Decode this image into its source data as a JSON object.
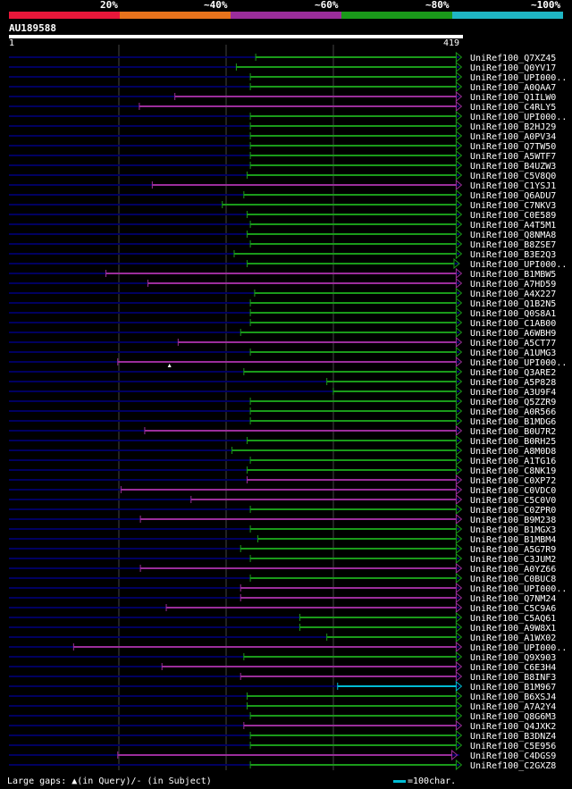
{
  "legend": {
    "labels": [
      "20%",
      "~40%",
      "~60%",
      "~80%",
      "~100%"
    ],
    "colors": [
      "#e8173a",
      "#e8731c",
      "#9b2d9b",
      "#1a9a1a",
      "#1fb6c4"
    ]
  },
  "query": {
    "id": "AU189588",
    "start_label": "1",
    "end_label": "419",
    "length": 419
  },
  "colors": {
    "background": "#000000",
    "unaligned": "#000060",
    "green": "#1a9a1a",
    "purple": "#9b2d9b",
    "cyan": "#00bcd4",
    "grid": "#444444"
  },
  "footer": {
    "gaps_text": "Large gaps: ▲(in Query)/- (in Subject)",
    "scale_text": "=100char."
  },
  "chart_data": {
    "type": "alignment-overview",
    "query_length": 419,
    "hits": [
      {
        "name": "UniRef100_Q7XZ45",
        "start": 230,
        "end": 416,
        "color": "green",
        "arrow": true
      },
      {
        "name": "UniRef100_Q0YV17",
        "start": 212,
        "end": 416,
        "color": "green",
        "arrow": true
      },
      {
        "name": "UniRef100_UPI000..",
        "start": 225,
        "end": 416,
        "color": "green",
        "arrow": true
      },
      {
        "name": "UniRef100_A0QAA7",
        "start": 225,
        "end": 416,
        "color": "green",
        "arrow": true
      },
      {
        "name": "UniRef100_Q1ILW0",
        "start": 155,
        "end": 416,
        "color": "purple",
        "arrow": true
      },
      {
        "name": "UniRef100_C4RLY5",
        "start": 122,
        "end": 416,
        "color": "purple",
        "arrow": true
      },
      {
        "name": "UniRef100_UPI000..",
        "start": 225,
        "end": 416,
        "color": "green",
        "arrow": true
      },
      {
        "name": "UniRef100_B2HJ29",
        "start": 225,
        "end": 416,
        "color": "green",
        "arrow": true
      },
      {
        "name": "UniRef100_A0PV34",
        "start": 225,
        "end": 416,
        "color": "green",
        "arrow": true
      },
      {
        "name": "UniRef100_Q7TW50",
        "start": 225,
        "end": 416,
        "color": "green",
        "arrow": true
      },
      {
        "name": "UniRef100_A5WTF7",
        "start": 225,
        "end": 416,
        "color": "green",
        "arrow": true
      },
      {
        "name": "UniRef100_B4UZW3",
        "start": 225,
        "end": 416,
        "color": "green",
        "arrow": true
      },
      {
        "name": "UniRef100_C5V8Q0",
        "start": 222,
        "end": 416,
        "color": "green",
        "arrow": true
      },
      {
        "name": "UniRef100_C1YSJ1",
        "start": 134,
        "end": 416,
        "color": "purple",
        "arrow": true
      },
      {
        "name": "UniRef100_Q6ADU7",
        "start": 219,
        "end": 416,
        "color": "green",
        "arrow": true
      },
      {
        "name": "UniRef100_C7NKV3",
        "start": 199,
        "end": 416,
        "color": "green",
        "arrow": true
      },
      {
        "name": "UniRef100_C0E589",
        "start": 222,
        "end": 416,
        "color": "green",
        "arrow": true
      },
      {
        "name": "UniRef100_A4T5M1",
        "start": 225,
        "end": 416,
        "color": "green",
        "arrow": true
      },
      {
        "name": "UniRef100_Q8NMA8",
        "start": 222,
        "end": 416,
        "color": "green",
        "arrow": true
      },
      {
        "name": "UniRef100_B8ZSE7",
        "start": 225,
        "end": 416,
        "color": "green",
        "arrow": true
      },
      {
        "name": "UniRef100_B3E2Q3",
        "start": 210,
        "end": 416,
        "color": "green",
        "arrow": true
      },
      {
        "name": "UniRef100_UPI000..",
        "start": 222,
        "end": 414,
        "color": "green",
        "arrow": true
      },
      {
        "name": "UniRef100_B1MBW5",
        "start": 91,
        "end": 416,
        "color": "purple",
        "arrow": true
      },
      {
        "name": "UniRef100_A7HD59",
        "start": 130,
        "end": 416,
        "color": "purple",
        "arrow": true
      },
      {
        "name": "UniRef100_A4X227",
        "start": 229,
        "end": 416,
        "color": "green",
        "arrow": true
      },
      {
        "name": "UniRef100_Q1B2N5",
        "start": 225,
        "end": 416,
        "color": "green",
        "arrow": true
      },
      {
        "name": "UniRef100_Q0S8A1",
        "start": 225,
        "end": 416,
        "color": "green",
        "arrow": true
      },
      {
        "name": "UniRef100_C1AB00",
        "start": 225,
        "end": 416,
        "color": "green",
        "arrow": true
      },
      {
        "name": "UniRef100_A6WBH9",
        "start": 216,
        "end": 416,
        "color": "green",
        "arrow": true
      },
      {
        "name": "UniRef100_A5CT77",
        "start": 158,
        "end": 416,
        "color": "purple",
        "arrow": true
      },
      {
        "name": "UniRef100_A1UMG3",
        "start": 225,
        "end": 416,
        "color": "green",
        "arrow": true
      },
      {
        "name": "UniRef100_UPI000..",
        "start": 102,
        "end": 416,
        "color": "purple",
        "arrow": true,
        "qgap": 150
      },
      {
        "name": "UniRef100_Q3ARE2",
        "start": 219,
        "end": 416,
        "color": "green",
        "arrow": true
      },
      {
        "name": "UniRef100_A5P828",
        "start": 296,
        "end": 416,
        "color": "green",
        "arrow": true
      },
      {
        "name": "UniRef100_A3U9F4",
        "start": 302,
        "end": 416,
        "color": "green",
        "arrow": true
      },
      {
        "name": "UniRef100_Q5ZZR9",
        "start": 225,
        "end": 416,
        "color": "green",
        "arrow": true
      },
      {
        "name": "UniRef100_A0R566",
        "start": 225,
        "end": 416,
        "color": "green",
        "arrow": true
      },
      {
        "name": "UniRef100_B1MDG6",
        "start": 225,
        "end": 416,
        "color": "green",
        "arrow": true
      },
      {
        "name": "UniRef100_B0U7R2",
        "start": 127,
        "end": 416,
        "color": "purple",
        "arrow": true
      },
      {
        "name": "UniRef100_B0RH25",
        "start": 222,
        "end": 416,
        "color": "green",
        "arrow": true
      },
      {
        "name": "UniRef100_A8M0D8",
        "start": 208,
        "end": 416,
        "color": "green",
        "arrow": true
      },
      {
        "name": "UniRef100_A1TG16",
        "start": 225,
        "end": 416,
        "color": "green",
        "arrow": true
      },
      {
        "name": "UniRef100_C8NK19",
        "start": 222,
        "end": 416,
        "color": "green",
        "arrow": true
      },
      {
        "name": "UniRef100_C0XP72",
        "start": 222,
        "end": 416,
        "color": "purple",
        "arrow": true
      },
      {
        "name": "UniRef100_C0VDC0",
        "start": 105,
        "end": 416,
        "color": "purple",
        "arrow": true
      },
      {
        "name": "UniRef100_C5C0V0",
        "start": 170,
        "end": 416,
        "color": "purple",
        "arrow": true
      },
      {
        "name": "UniRef100_C0ZPR0",
        "start": 225,
        "end": 416,
        "color": "green",
        "arrow": true
      },
      {
        "name": "UniRef100_B9M238",
        "start": 123,
        "end": 416,
        "color": "purple",
        "arrow": true
      },
      {
        "name": "UniRef100_B1MGX3",
        "start": 225,
        "end": 416,
        "color": "green",
        "arrow": true
      },
      {
        "name": "UniRef100_B1MBM4",
        "start": 232,
        "end": 416,
        "color": "green",
        "arrow": true
      },
      {
        "name": "UniRef100_A5G7R9",
        "start": 216,
        "end": 416,
        "color": "green",
        "arrow": true
      },
      {
        "name": "UniRef100_C3JUM2",
        "start": 225,
        "end": 416,
        "color": "green",
        "arrow": true
      },
      {
        "name": "UniRef100_A0YZ66",
        "start": 123,
        "end": 416,
        "color": "purple",
        "arrow": true
      },
      {
        "name": "UniRef100_C0BUC8",
        "start": 225,
        "end": 416,
        "color": "green",
        "arrow": true
      },
      {
        "name": "UniRef100_UPI000..",
        "start": 216,
        "end": 416,
        "color": "purple",
        "arrow": true
      },
      {
        "name": "UniRef100_Q7NM24",
        "start": 216,
        "end": 416,
        "color": "purple",
        "arrow": true
      },
      {
        "name": "UniRef100_C5C9A6",
        "start": 147,
        "end": 416,
        "color": "purple",
        "arrow": true
      },
      {
        "name": "UniRef100_C5AQ61",
        "start": 271,
        "end": 416,
        "color": "green",
        "arrow": true
      },
      {
        "name": "UniRef100_A9W8X1",
        "start": 271,
        "end": 416,
        "color": "green",
        "arrow": true
      },
      {
        "name": "UniRef100_A1WX02",
        "start": 296,
        "end": 416,
        "color": "green",
        "arrow": true
      },
      {
        "name": "UniRef100_UPI000..",
        "start": 61,
        "end": 416,
        "color": "purple",
        "arrow": true
      },
      {
        "name": "UniRef100_Q9X903",
        "start": 219,
        "end": 416,
        "color": "green",
        "arrow": true
      },
      {
        "name": "UniRef100_C6E3H4",
        "start": 143,
        "end": 416,
        "color": "purple",
        "arrow": true
      },
      {
        "name": "UniRef100_B8INF3",
        "start": 216,
        "end": 416,
        "color": "purple",
        "arrow": true
      },
      {
        "name": "UniRef100_B1M967",
        "start": 306,
        "end": 416,
        "color": "cyan",
        "arrow": true
      },
      {
        "name": "UniRef100_B6XSJ4",
        "start": 222,
        "end": 416,
        "color": "green",
        "arrow": true
      },
      {
        "name": "UniRef100_A7A2Y4",
        "start": 222,
        "end": 416,
        "color": "green",
        "arrow": true
      },
      {
        "name": "UniRef100_Q8G6M3",
        "start": 225,
        "end": 416,
        "color": "green",
        "arrow": true
      },
      {
        "name": "UniRef100_Q4JXK2",
        "start": 219,
        "end": 416,
        "color": "purple",
        "arrow": true
      },
      {
        "name": "UniRef100_B3DNZ4",
        "start": 225,
        "end": 416,
        "color": "green",
        "arrow": true
      },
      {
        "name": "UniRef100_C5E956",
        "start": 225,
        "end": 416,
        "color": "green",
        "arrow": true
      },
      {
        "name": "UniRef100_C4DGS9",
        "start": 102,
        "end": 412,
        "color": "purple",
        "arrow": true
      },
      {
        "name": "UniRef100_C2GXZ8",
        "start": 225,
        "end": 416,
        "color": "green",
        "arrow": true
      }
    ]
  }
}
